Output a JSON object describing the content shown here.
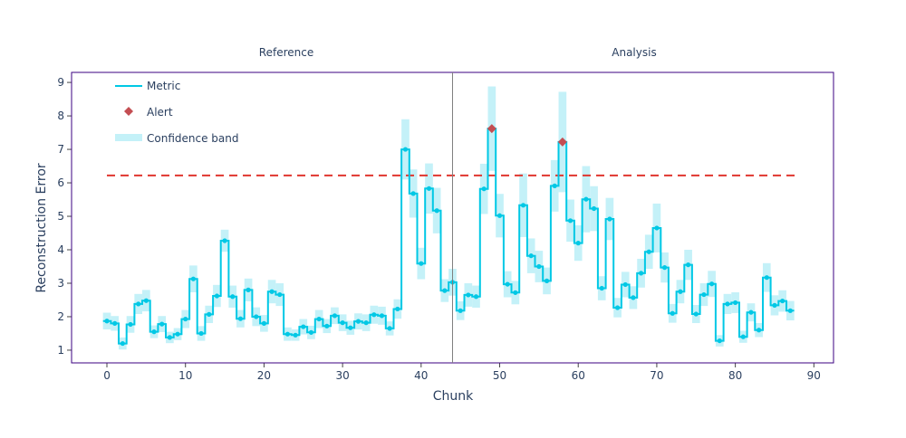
{
  "chart_data": {
    "type": "line",
    "xlabel": "Chunk",
    "ylabel": "Reconstruction Error",
    "xlim": [
      -4.5,
      92.5
    ],
    "ylim": [
      0.62,
      9.3
    ],
    "x_ticks": [
      0,
      10,
      20,
      30,
      40,
      50,
      60,
      70,
      80,
      90
    ],
    "y_ticks": [
      1,
      2,
      3,
      4,
      5,
      6,
      7,
      8,
      9
    ],
    "period_labels": {
      "reference": "Reference",
      "analysis": "Analysis"
    },
    "period_split": 44,
    "threshold": 6.22,
    "legend": {
      "metric": "Metric",
      "alert": "Alert",
      "band": "Confidence band"
    },
    "legend_position": "top-left",
    "colors": {
      "metric": "#00c8e5",
      "band": "#c4f1f8",
      "alert": "#c44e52",
      "threshold": "#e0362f",
      "frame": "#3b0280",
      "divider": "#808080"
    },
    "values": [
      1.87,
      1.8,
      1.2,
      1.77,
      2.38,
      2.48,
      1.55,
      1.78,
      1.38,
      1.48,
      1.93,
      3.13,
      1.5,
      2.07,
      2.62,
      4.27,
      2.6,
      1.94,
      2.8,
      2.0,
      1.8,
      2.75,
      2.66,
      1.48,
      1.45,
      1.7,
      1.53,
      1.93,
      1.72,
      2.03,
      1.82,
      1.67,
      1.86,
      1.82,
      2.06,
      2.03,
      1.65,
      2.23,
      7.0,
      5.68,
      3.59,
      5.83,
      5.17,
      2.78,
      3.03,
      2.18,
      2.65,
      2.6,
      5.82,
      7.62,
      5.02,
      2.97,
      2.72,
      5.33,
      3.82,
      3.5,
      3.07,
      5.91,
      7.22,
      4.87,
      4.2,
      5.51,
      5.23,
      2.85,
      4.92,
      2.27,
      2.96,
      2.57,
      3.3,
      3.94,
      4.65,
      3.47,
      2.1,
      2.75,
      3.55,
      2.08,
      2.66,
      2.98,
      1.28,
      2.38,
      2.42,
      1.4,
      2.13,
      1.6,
      3.17,
      2.34,
      2.47,
      2.18
    ],
    "band_upper": [
      2.12,
      2.02,
      1.38,
      2.02,
      2.68,
      2.8,
      1.74,
      2.02,
      1.55,
      1.66,
      2.2,
      3.53,
      1.72,
      2.33,
      2.95,
      4.6,
      2.93,
      2.2,
      3.14,
      2.28,
      2.05,
      3.1,
      3.0,
      1.68,
      1.62,
      1.93,
      1.73,
      2.2,
      1.93,
      2.28,
      2.07,
      1.88,
      2.1,
      2.07,
      2.33,
      2.3,
      1.86,
      2.52,
      7.9,
      6.4,
      4.06,
      6.58,
      5.85,
      3.12,
      3.43,
      2.46,
      3.0,
      2.93,
      6.57,
      8.88,
      5.67,
      3.36,
      3.07,
      6.28,
      4.34,
      3.97,
      3.47,
      6.68,
      8.72,
      5.5,
      4.73,
      6.5,
      5.9,
      3.21,
      5.55,
      2.56,
      3.34,
      2.91,
      3.73,
      4.45,
      5.38,
      3.92,
      2.38,
      3.1,
      4.0,
      2.35,
      3.0,
      3.37,
      1.45,
      2.68,
      2.73,
      1.58,
      2.4,
      1.81,
      3.6,
      2.64,
      2.79,
      2.47
    ],
    "band_lower": [
      1.62,
      1.58,
      1.02,
      1.52,
      2.08,
      2.16,
      1.36,
      1.54,
      1.21,
      1.3,
      1.66,
      2.73,
      1.28,
      1.81,
      2.29,
      3.94,
      2.27,
      1.68,
      2.46,
      1.72,
      1.55,
      2.4,
      2.32,
      1.28,
      1.28,
      1.47,
      1.33,
      1.66,
      1.51,
      1.78,
      1.57,
      1.46,
      1.62,
      1.57,
      1.79,
      1.76,
      1.44,
      1.94,
      6.1,
      4.96,
      3.12,
      5.08,
      4.49,
      2.44,
      2.63,
      1.9,
      2.3,
      2.27,
      5.07,
      6.36,
      4.37,
      2.58,
      2.37,
      4.38,
      3.3,
      3.03,
      2.67,
      5.14,
      5.72,
      4.24,
      3.67,
      4.52,
      4.56,
      2.49,
      4.29,
      1.98,
      2.58,
      2.23,
      2.87,
      3.43,
      3.92,
      3.02,
      1.82,
      2.4,
      3.1,
      1.81,
      2.32,
      2.59,
      1.11,
      2.08,
      2.11,
      1.22,
      1.86,
      1.39,
      2.74,
      2.04,
      2.15,
      1.89
    ],
    "alerts": [
      49,
      58
    ]
  }
}
